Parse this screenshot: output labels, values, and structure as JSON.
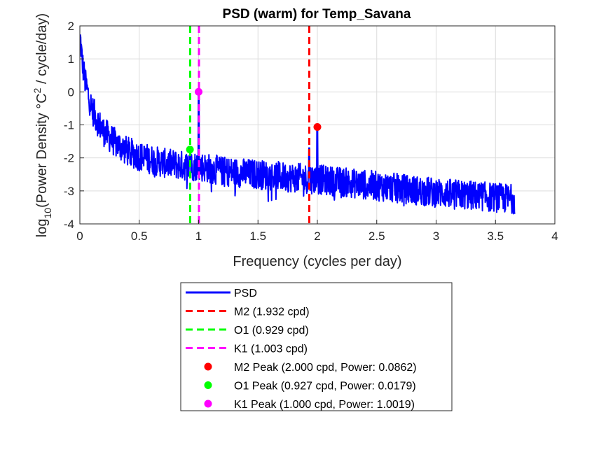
{
  "chart_data": {
    "type": "line",
    "title": "PSD (warm) for Temp_Savana",
    "xlabel": "Frequency (cycles per day)",
    "ylabel": {
      "prefix": "log",
      "sub": "10",
      "mid": "(Power Density °C",
      "sup": "2",
      "suffix": " / cycle/day)"
    },
    "xlim": [
      0,
      4
    ],
    "ylim": [
      -4,
      2
    ],
    "xticks": [
      "0",
      "0.5",
      "1",
      "1.5",
      "2",
      "2.5",
      "3",
      "3.5",
      "4"
    ],
    "yticks": [
      "2",
      "1",
      "0",
      "-1",
      "-2",
      "-3",
      "-4"
    ],
    "grid": true,
    "legend_position": "below",
    "psd_series": {
      "name": "PSD",
      "color": "#0000ff",
      "x_range": [
        0,
        3.66
      ],
      "trend_points": [
        [
          0.005,
          1.6
        ],
        [
          0.02,
          0.9
        ],
        [
          0.05,
          0.2
        ],
        [
          0.1,
          -0.5
        ],
        [
          0.15,
          -0.9
        ],
        [
          0.2,
          -1.2
        ],
        [
          0.3,
          -1.55
        ],
        [
          0.4,
          -1.8
        ],
        [
          0.5,
          -1.95
        ],
        [
          0.6,
          -2.05
        ],
        [
          0.7,
          -2.15
        ],
        [
          0.8,
          -2.2
        ],
        [
          0.9,
          -2.25
        ],
        [
          1.0,
          -2.25
        ],
        [
          1.2,
          -2.4
        ],
        [
          1.5,
          -2.5
        ],
        [
          1.8,
          -2.6
        ],
        [
          2.0,
          -2.65
        ],
        [
          2.5,
          -2.85
        ],
        [
          3.0,
          -3.05
        ],
        [
          3.5,
          -3.2
        ],
        [
          3.66,
          -3.25
        ]
      ],
      "noise_amplitude": 0.45,
      "spikes": [
        [
          0.93,
          -1.75
        ],
        [
          1.0,
          0.0
        ],
        [
          1.932,
          -1.7
        ],
        [
          2.0,
          -1.05
        ]
      ]
    },
    "vlines": [
      {
        "name": "M2 (1.932 cpd)",
        "x": 1.932,
        "color": "#ff0000"
      },
      {
        "name": "O1 (0.929 cpd)",
        "x": 0.929,
        "color": "#00ff00"
      },
      {
        "name": "K1 (1.003 cpd)",
        "x": 1.003,
        "color": "#ff00ff"
      }
    ],
    "peaks": [
      {
        "name": "M2 Peak (2.000 cpd, Power: 0.0862)",
        "x": 2.0,
        "y": -1.0645,
        "color": "#ff0000"
      },
      {
        "name": "O1 Peak (0.927 cpd, Power: 0.0179)",
        "x": 0.927,
        "y": -1.7471,
        "color": "#00ff00"
      },
      {
        "name": "K1 Peak (1.000 cpd, Power: 1.0019)",
        "x": 1.0,
        "y": 0.0008,
        "color": "#ff00ff"
      }
    ]
  }
}
